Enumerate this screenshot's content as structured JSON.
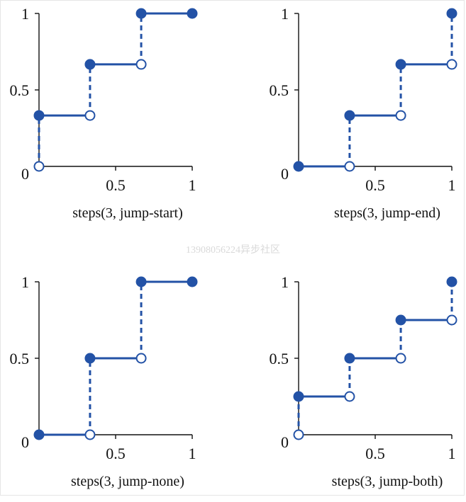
{
  "colors": {
    "series": "#2352a6",
    "axis": "#111111",
    "open_fill": "#ffffff"
  },
  "watermark": "13908056224异步社区",
  "chart_data": [
    {
      "type": "line",
      "subtype": "step",
      "title": "steps(3, jump-start)",
      "xlim": [
        0,
        1
      ],
      "ylim": [
        0,
        1
      ],
      "xticks": [
        "0.5",
        "1"
      ],
      "yticks": [
        "0",
        "0.5",
        "1"
      ],
      "steps": [
        {
          "x": [
            0,
            0.333
          ],
          "y": 0.333
        },
        {
          "x": [
            0.333,
            0.667
          ],
          "y": 0.667
        },
        {
          "x": [
            0.667,
            1
          ],
          "y": 1
        }
      ],
      "jumps": [
        {
          "x": 0,
          "from": 0,
          "to": 0.333
        },
        {
          "x": 0.333,
          "from": 0.333,
          "to": 0.667
        },
        {
          "x": 0.667,
          "from": 0.667,
          "to": 1
        }
      ],
      "filled_points": [
        [
          0,
          0.333
        ],
        [
          0.333,
          0.667
        ],
        [
          0.667,
          1
        ],
        [
          1,
          1
        ]
      ],
      "open_points": [
        [
          0,
          0
        ],
        [
          0.333,
          0.333
        ],
        [
          0.667,
          0.667
        ]
      ]
    },
    {
      "type": "line",
      "subtype": "step",
      "title": "steps(3, jump-end)",
      "xlim": [
        0,
        1
      ],
      "ylim": [
        0,
        1
      ],
      "xticks": [
        "0.5",
        "1"
      ],
      "yticks": [
        "0",
        "0.5",
        "1"
      ],
      "steps": [
        {
          "x": [
            0,
            0.333
          ],
          "y": 0
        },
        {
          "x": [
            0.333,
            0.667
          ],
          "y": 0.333
        },
        {
          "x": [
            0.667,
            1
          ],
          "y": 0.667
        }
      ],
      "jumps": [
        {
          "x": 0.333,
          "from": 0,
          "to": 0.333
        },
        {
          "x": 0.667,
          "from": 0.333,
          "to": 0.667
        },
        {
          "x": 1,
          "from": 0.667,
          "to": 1
        }
      ],
      "filled_points": [
        [
          0,
          0
        ],
        [
          0.333,
          0.333
        ],
        [
          0.667,
          0.667
        ],
        [
          1,
          1
        ]
      ],
      "open_points": [
        [
          0.333,
          0
        ],
        [
          0.667,
          0.333
        ],
        [
          1,
          0.667
        ]
      ]
    },
    {
      "type": "line",
      "subtype": "step",
      "title": "steps(3, jump-none)",
      "xlim": [
        0,
        1
      ],
      "ylim": [
        0,
        1
      ],
      "xticks": [
        "0.5",
        "1"
      ],
      "yticks": [
        "0",
        "0.5",
        "1"
      ],
      "steps": [
        {
          "x": [
            0,
            0.333
          ],
          "y": 0
        },
        {
          "x": [
            0.333,
            0.667
          ],
          "y": 0.5
        },
        {
          "x": [
            0.667,
            1
          ],
          "y": 1
        }
      ],
      "jumps": [
        {
          "x": 0.333,
          "from": 0,
          "to": 0.5
        },
        {
          "x": 0.667,
          "from": 0.5,
          "to": 1
        }
      ],
      "filled_points": [
        [
          0,
          0
        ],
        [
          0.333,
          0.5
        ],
        [
          0.667,
          1
        ],
        [
          1,
          1
        ]
      ],
      "open_points": [
        [
          0.333,
          0
        ],
        [
          0.667,
          0.5
        ]
      ]
    },
    {
      "type": "line",
      "subtype": "step",
      "title": "steps(3, jump-both)",
      "xlim": [
        0,
        1
      ],
      "ylim": [
        0,
        1
      ],
      "xticks": [
        "0.5",
        "1"
      ],
      "yticks": [
        "0",
        "0.5",
        "1"
      ],
      "steps": [
        {
          "x": [
            0,
            0.333
          ],
          "y": 0.25
        },
        {
          "x": [
            0.333,
            0.667
          ],
          "y": 0.5
        },
        {
          "x": [
            0.667,
            1
          ],
          "y": 0.75
        }
      ],
      "jumps": [
        {
          "x": 0,
          "from": 0,
          "to": 0.25
        },
        {
          "x": 0.333,
          "from": 0.25,
          "to": 0.5
        },
        {
          "x": 0.667,
          "from": 0.5,
          "to": 0.75
        },
        {
          "x": 1,
          "from": 0.75,
          "to": 1
        }
      ],
      "filled_points": [
        [
          0,
          0.25
        ],
        [
          0.333,
          0.5
        ],
        [
          0.667,
          0.75
        ],
        [
          1,
          1
        ]
      ],
      "open_points": [
        [
          0,
          0
        ],
        [
          0.333,
          0.25
        ],
        [
          0.667,
          0.5
        ],
        [
          1,
          0.75
        ]
      ]
    }
  ]
}
